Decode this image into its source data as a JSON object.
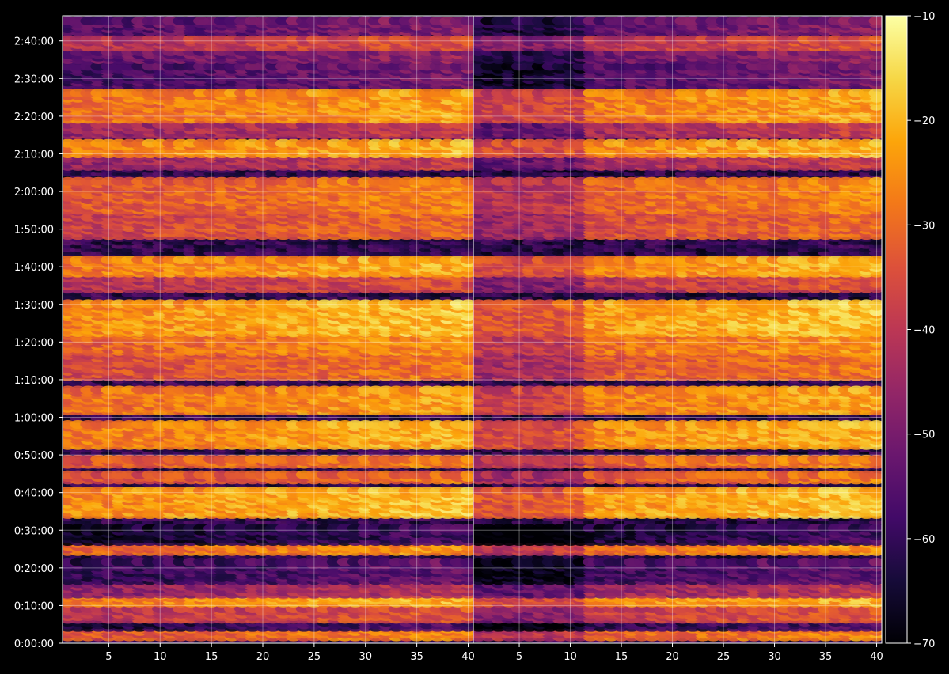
{
  "chart_data": {
    "type": "heatmap",
    "colormap": "inferno",
    "background": "#000000",
    "grid": true,
    "panels": [
      {
        "name": "",
        "xlim": [
          1,
          40
        ],
        "xticks": [
          5,
          10,
          15,
          20,
          25,
          30,
          35,
          40
        ],
        "xtick_labels": [
          "5",
          "10",
          "15",
          "20",
          "25",
          "30",
          "35",
          "40"
        ]
      },
      {
        "name": "",
        "xlim": [
          1,
          40
        ],
        "xticks": [
          5,
          10,
          15,
          20,
          25,
          30,
          35,
          40
        ],
        "xtick_labels": [
          "5",
          "10",
          "15",
          "20",
          "25",
          "30",
          "35",
          "40"
        ]
      }
    ],
    "y_axis": {
      "unit": "seconds",
      "ylim": [
        0,
        10000
      ],
      "ticks": [
        0,
        600,
        1200,
        1800,
        2400,
        3000,
        3600,
        4200,
        4800,
        5400,
        6000,
        6600,
        7200,
        7800,
        8400,
        9000,
        9600
      ],
      "tick_labels": [
        "0:00:00",
        "0:10:00",
        "0:20:00",
        "0:30:00",
        "0:40:00",
        "0:50:00",
        "1:00:00",
        "1:10:00",
        "1:20:00",
        "1:30:00",
        "1:40:00",
        "1:50:00",
        "2:00:00",
        "2:10:00",
        "2:20:00",
        "2:30:00",
        "2:40:00"
      ]
    },
    "colorbar": {
      "range": [
        -70,
        -10
      ],
      "ticks": [
        -10,
        -20,
        -30,
        -40,
        -50,
        -60,
        -70
      ],
      "tick_labels": [
        "−10",
        "−20",
        "−30",
        "−40",
        "−50",
        "−60",
        "−70"
      ]
    },
    "intensity_profile": {
      "description_units": "dB",
      "bands": [
        {
          "t_start": 100,
          "t_end": 250,
          "level": -28
        },
        {
          "t_start": 250,
          "t_end": 380,
          "level": -58
        },
        {
          "t_start": 380,
          "t_end": 560,
          "level": -35
        },
        {
          "t_start": 640,
          "t_end": 780,
          "level": -22
        },
        {
          "t_start": 780,
          "t_end": 1000,
          "level": -42
        },
        {
          "t_start": 1000,
          "t_end": 1300,
          "level": -55
        },
        {
          "t_start": 1460,
          "t_end": 1620,
          "level": -26
        },
        {
          "t_start": 1620,
          "t_end": 1850,
          "level": -60
        },
        {
          "t_start": 2050,
          "t_end": 2450,
          "level": -20
        },
        {
          "t_start": 2600,
          "t_end": 2700,
          "level": -30
        },
        {
          "t_start": 2850,
          "t_end": 2950,
          "level": -28
        },
        {
          "t_start": 3150,
          "t_end": 3500,
          "level": -22
        },
        {
          "t_start": 3700,
          "t_end": 4050,
          "level": -24
        },
        {
          "t_start": 4250,
          "t_end": 4650,
          "level": -30
        },
        {
          "t_start": 4650,
          "t_end": 4950,
          "level": -26
        },
        {
          "t_start": 4950,
          "t_end": 5450,
          "level": -20
        },
        {
          "t_start": 5650,
          "t_end": 5900,
          "level": -36
        },
        {
          "t_start": 5900,
          "t_end": 6150,
          "level": -22
        },
        {
          "t_start": 6500,
          "t_end": 6900,
          "level": -32
        },
        {
          "t_start": 6900,
          "t_end": 7400,
          "level": -28
        },
        {
          "t_start": 7600,
          "t_end": 7800,
          "level": -40
        },
        {
          "t_start": 7800,
          "t_end": 8000,
          "level": -22
        },
        {
          "t_start": 8100,
          "t_end": 8300,
          "level": -40
        },
        {
          "t_start": 8350,
          "t_end": 8800,
          "level": -24
        },
        {
          "t_start": 8900,
          "t_end": 9200,
          "level": -52
        },
        {
          "t_start": 9300,
          "t_end": 9450,
          "level": -48
        },
        {
          "t_start": 9500,
          "t_end": 9650,
          "level": -36
        },
        {
          "t_start": 9750,
          "t_end": 9950,
          "level": -50
        }
      ]
    }
  }
}
